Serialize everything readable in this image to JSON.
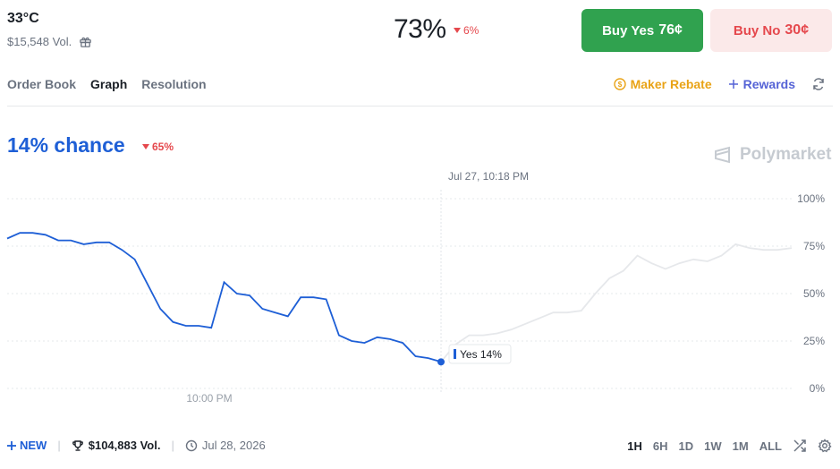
{
  "market": {
    "title": "33°C",
    "volume": "$15,548 Vol.",
    "icon": "gift-icon"
  },
  "header": {
    "percent": "73%",
    "change": "6%",
    "buy_yes_label": "Buy Yes",
    "buy_yes_price": "76¢",
    "buy_no_label": "Buy No",
    "buy_no_price": "30¢"
  },
  "tabs": [
    {
      "label": "Order Book",
      "active": false
    },
    {
      "label": "Graph",
      "active": true
    },
    {
      "label": "Resolution",
      "active": false
    }
  ],
  "links": {
    "maker_rebate": "Maker Rebate",
    "rewards": "Rewards"
  },
  "chance": {
    "label": "14% chance",
    "change": "65%"
  },
  "brand": "Polymarket",
  "colors": {
    "accent": "#1e5fd6",
    "buy_yes": "#30a24f",
    "buy_no_bg": "#fbe9e9",
    "negative": "#e5484d",
    "maker": "#e9a316",
    "rewards": "#5563d6"
  },
  "chart_data": {
    "type": "line",
    "hover_label": "Jul 27, 10:18 PM",
    "tooltip": "Yes 14%",
    "x_tick_label": "10:00 PM",
    "y_ticks": [
      "100%",
      "75%",
      "50%",
      "25%",
      "0%"
    ],
    "ylim": [
      0,
      100
    ],
    "grid": true,
    "series": [
      {
        "values": [
          79,
          82,
          82,
          81,
          78,
          78,
          76,
          77,
          77,
          73,
          68,
          55,
          42,
          35,
          33,
          33,
          32,
          56,
          50,
          49,
          42,
          40,
          38,
          48,
          48,
          47,
          28,
          25,
          24,
          27,
          26,
          24,
          17,
          16,
          14
        ]
      },
      {
        "values": [
          14,
          23,
          28,
          28,
          29,
          31,
          34,
          37,
          40,
          40,
          41,
          50,
          58,
          62,
          70,
          66,
          63,
          66,
          68,
          67,
          70,
          76,
          74,
          73,
          73,
          74
        ]
      }
    ]
  },
  "footer": {
    "new_label": "NEW",
    "volume": "$104,883 Vol.",
    "date": "Jul 28, 2026"
  },
  "ranges": [
    {
      "label": "1H",
      "active": true
    },
    {
      "label": "6H",
      "active": false
    },
    {
      "label": "1D",
      "active": false
    },
    {
      "label": "1W",
      "active": false
    },
    {
      "label": "1M",
      "active": false
    },
    {
      "label": "ALL",
      "active": false
    }
  ]
}
